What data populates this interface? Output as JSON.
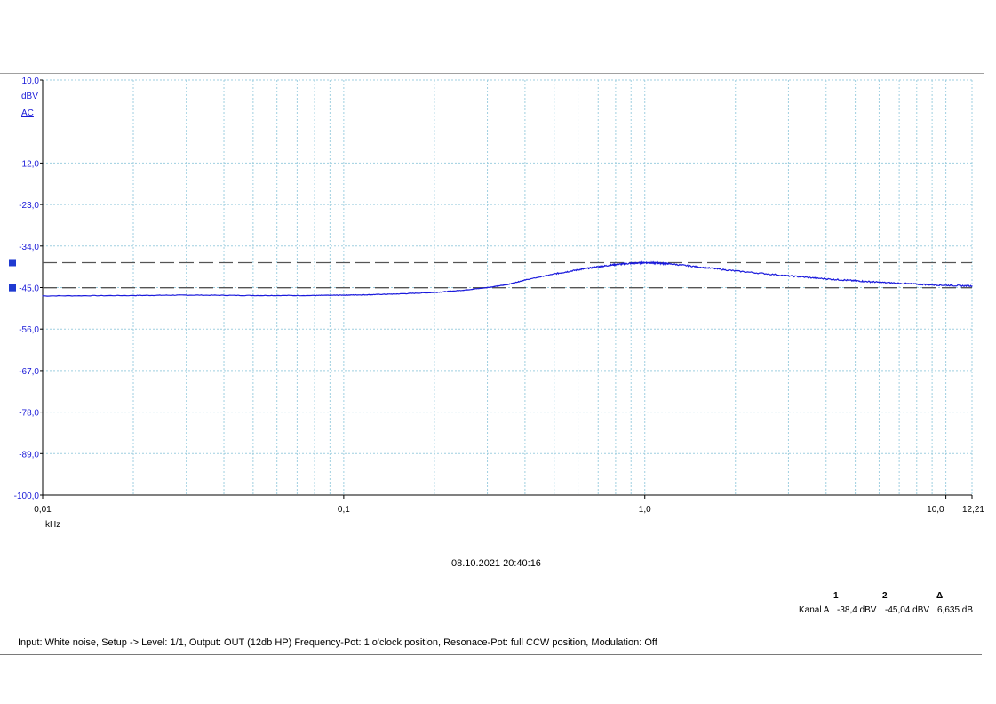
{
  "chart_data": {
    "type": "line",
    "x_scale": "log",
    "x_unit": "kHz",
    "y_unit": "dBV",
    "y_coupling": "AC",
    "xlim": [
      0.01,
      12.21
    ],
    "ylim": [
      -100.0,
      10.0
    ],
    "y_ticks": [
      10.0,
      -12.0,
      -23.0,
      -34.0,
      -45.0,
      -56.0,
      -67.0,
      -78.0,
      -89.0,
      -100.0
    ],
    "y_tick_labels": [
      "10,0",
      "-12,0",
      "-23,0",
      "-34,0",
      "-45,0",
      "-56,0",
      "-67,0",
      "-78,0",
      "-89,0",
      "-100,0"
    ],
    "x_ticks": [
      0.01,
      0.1,
      1.0,
      10.0,
      12.21
    ],
    "x_tick_labels": [
      "0,01",
      "0,1",
      "1,0",
      "10,0",
      "12,21"
    ],
    "grid": true,
    "series": [
      {
        "color": "#1a1adc",
        "x": [
          0.01,
          0.02,
          0.03,
          0.05,
          0.08,
          0.1,
          0.12,
          0.15,
          0.2,
          0.25,
          0.3,
          0.35,
          0.4,
          0.5,
          0.6,
          0.7,
          0.8,
          0.9,
          1.0,
          1.1,
          1.2,
          1.5,
          2.0,
          3.0,
          4.0,
          5.0,
          6.0,
          8.0,
          10.0,
          12.21
        ],
        "y": [
          -47.2,
          -47.1,
          -47.0,
          -47.1,
          -47.1,
          -47.0,
          -46.9,
          -46.7,
          -46.3,
          -45.7,
          -45.0,
          -44.2,
          -43.0,
          -41.4,
          -40.3,
          -39.5,
          -38.9,
          -38.6,
          -38.4,
          -38.5,
          -38.7,
          -39.5,
          -40.6,
          -41.9,
          -42.7,
          -43.2,
          -43.6,
          -44.1,
          -44.4,
          -44.6
        ]
      }
    ],
    "cursors": [
      {
        "id": "1",
        "y": -38.4
      },
      {
        "id": "2",
        "y": -45.04
      }
    ]
  },
  "timestamp": "08.10.2021 20:40:16",
  "measurement_table": {
    "headers": [
      "1",
      "2",
      "Δ"
    ],
    "row_label": "Kanal A",
    "values": [
      "-38,4 dBV",
      "-45,04 dBV",
      "6,635 dB"
    ]
  },
  "caption": "Input: White noise, Setup -> Level: 1/1, Output: OUT (12db HP)  Frequency-Pot: 1 o'clock position, Resonace-Pot: full CCW position, Modulation: Off",
  "colors": {
    "trace": "#1a1adc",
    "axis_text": "#1a1ad8",
    "grid": "#9fcfe0",
    "cursor_line": "#555555",
    "cursor_marker": "#1f3ad1"
  }
}
